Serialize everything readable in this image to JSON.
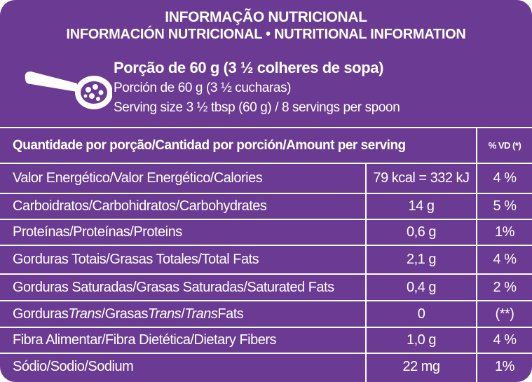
{
  "header": {
    "title_pt": "INFORMAÇÃO NUTRICIONAL",
    "title_es_en": "INFORMACIÓN NUTRICIONAL • NUTRITIONAL INFORMATION"
  },
  "serving": {
    "icon": "spoon-icon",
    "portion_pt": "Porção de 60 g (3 ½ colheres de sopa)",
    "portion_es": "Porción de 60 g (3 ½ cucharas)",
    "portion_en": "Serving size 3 ½ tbsp (60 g) / 8 servings per spoon"
  },
  "table": {
    "header_label": "Quantidade por porção/Cantidad por porción/Amount per serving",
    "header_dv": "% VD (*)",
    "rows": [
      {
        "label": "Valor Energético/Valor Energético/Calories",
        "amount": "79 kcal = 332 kJ",
        "dv": "4 %"
      },
      {
        "label": "Carboidratos/Carbohidratos/Carbohydrates",
        "amount": "14 g",
        "dv": "5 %"
      },
      {
        "label": "Proteínas/Proteínas/Proteins",
        "amount": "0,6 g",
        "dv": "1%"
      },
      {
        "label": "Gorduras Totais/Grasas Totales/Total Fats",
        "amount": "2,1 g",
        "dv": "4 %"
      },
      {
        "label": "Gorduras Saturadas/Grasas Saturadas/Saturated Fats",
        "amount": "0,4 g",
        "dv": "2 %"
      },
      {
        "label_parts": [
          "Gorduras ",
          "Trans",
          "/Grasas ",
          "Trans",
          "/",
          "Trans",
          " Fats"
        ],
        "amount": "0",
        "dv": "(**)"
      },
      {
        "label": "Fibra Alimentar/Fibra Dietética/Dietary Fibers",
        "amount": "1,0 g",
        "dv": "4 %"
      },
      {
        "label": "Sódio/Sodio/Sodium",
        "amount": "22 mg",
        "dv": "1%"
      }
    ]
  },
  "colors": {
    "background": "#6b3a93",
    "text": "#ffffff"
  }
}
